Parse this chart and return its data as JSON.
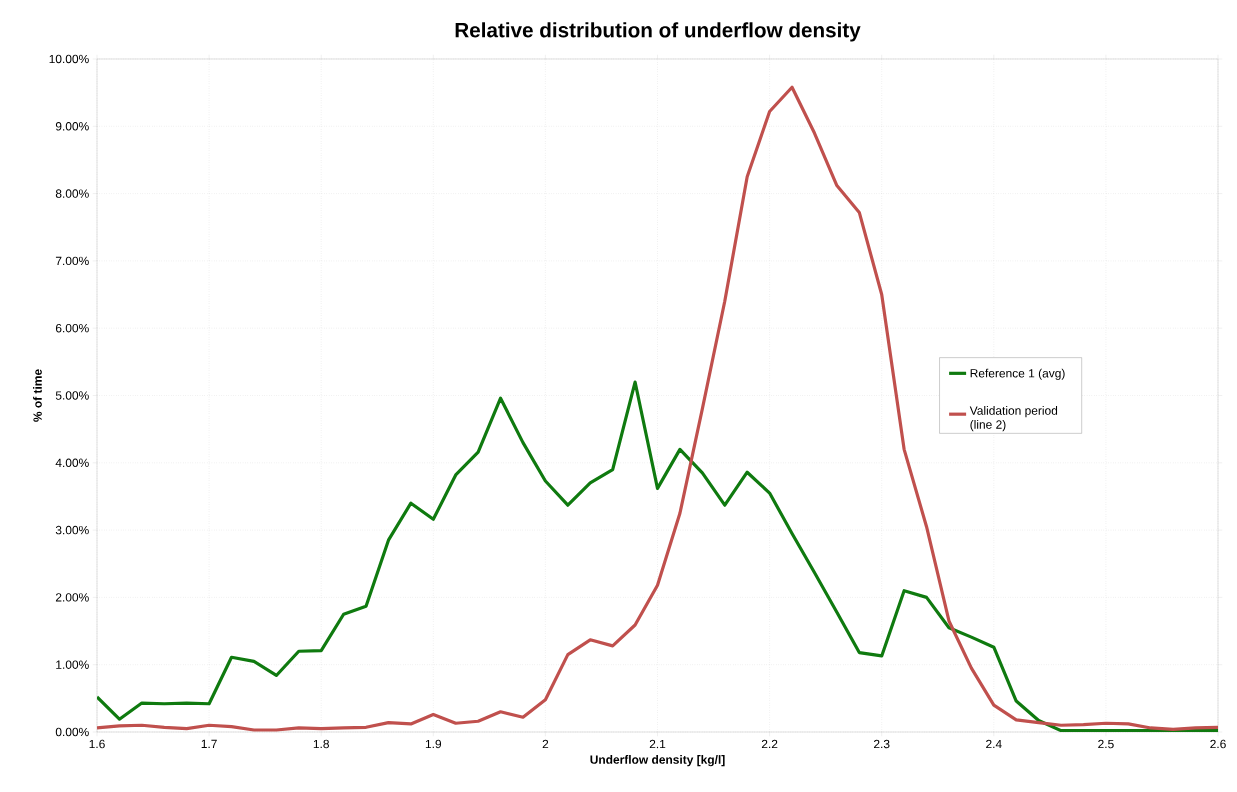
{
  "chart_data": {
    "type": "line",
    "title": "Relative distribution of underflow density",
    "xlabel": "Underflow density [kg/l]",
    "ylabel": "% of time",
    "x": [
      1.6,
      1.62,
      1.64,
      1.66,
      1.68,
      1.7,
      1.72,
      1.74,
      1.76,
      1.78,
      1.8,
      1.82,
      1.84,
      1.86,
      1.88,
      1.9,
      1.92,
      1.94,
      1.96,
      1.98,
      2.0,
      2.02,
      2.04,
      2.06,
      2.08,
      2.1,
      2.12,
      2.14,
      2.16,
      2.18,
      2.2,
      2.22,
      2.24,
      2.26,
      2.28,
      2.3,
      2.32,
      2.34,
      2.36,
      2.38,
      2.4,
      2.42,
      2.44,
      2.46,
      2.48,
      2.5,
      2.52,
      2.54,
      2.56,
      2.58,
      2.6
    ],
    "series": [
      {
        "name": "Reference 1 (avg)",
        "color": "#0f7a0f",
        "values": [
          0.52,
          0.19,
          0.43,
          0.42,
          0.43,
          0.42,
          1.11,
          1.05,
          0.84,
          1.2,
          1.21,
          1.75,
          1.87,
          2.85,
          3.4,
          3.16,
          3.82,
          4.16,
          4.96,
          4.3,
          3.73,
          3.37,
          3.7,
          3.9,
          5.2,
          3.62,
          4.2,
          3.85,
          3.37,
          3.86,
          3.55,
          2.95,
          2.37,
          1.78,
          1.18,
          1.13,
          2.1,
          2.0,
          1.55,
          1.41,
          1.26,
          0.46,
          0.17,
          0.02,
          0.02,
          0.02,
          0.02,
          0.02,
          0.02,
          0.02,
          0.02
        ]
      },
      {
        "name": "Validation period (line 2)",
        "color": "#c0504d",
        "values": [
          0.06,
          0.09,
          0.1,
          0.07,
          0.05,
          0.1,
          0.08,
          0.03,
          0.03,
          0.06,
          0.05,
          0.06,
          0.07,
          0.14,
          0.12,
          0.26,
          0.13,
          0.16,
          0.3,
          0.22,
          0.48,
          1.15,
          1.37,
          1.28,
          1.59,
          2.18,
          3.25,
          4.8,
          6.4,
          8.25,
          9.22,
          9.58,
          8.9,
          8.12,
          7.72,
          6.5,
          4.2,
          3.05,
          1.65,
          0.95,
          0.4,
          0.18,
          0.14,
          0.1,
          0.11,
          0.13,
          0.12,
          0.06,
          0.04,
          0.06,
          0.07
        ]
      }
    ],
    "xlim": [
      1.6,
      2.6
    ],
    "xticks": [
      1.6,
      1.7,
      1.8,
      1.9,
      2,
      2.1,
      2.2,
      2.3,
      2.4,
      2.5,
      2.6
    ],
    "ylim": [
      0,
      10
    ],
    "yticks": [
      {
        "value": 0,
        "label": "0.00%"
      },
      {
        "value": 1,
        "label": "1.00%"
      },
      {
        "value": 2,
        "label": "2.00%"
      },
      {
        "value": 3,
        "label": "3.00%"
      },
      {
        "value": 4,
        "label": "4.00%"
      },
      {
        "value": 5,
        "label": "5.00%"
      },
      {
        "value": 6,
        "label": "6.00%"
      },
      {
        "value": 7,
        "label": "7.00%"
      },
      {
        "value": 8,
        "label": "8.00%"
      },
      {
        "value": 9,
        "label": "9.00%"
      },
      {
        "value": 10,
        "label": "10.00%"
      }
    ],
    "grid": true,
    "legend": "right",
    "marker": "none",
    "line_style": "solid"
  }
}
